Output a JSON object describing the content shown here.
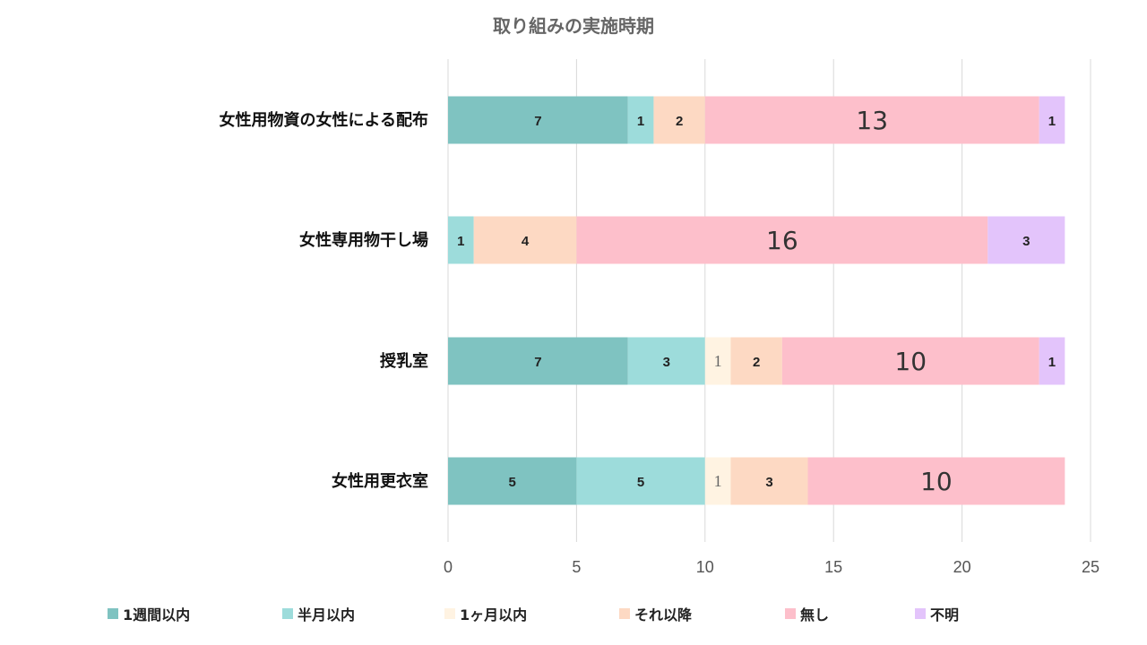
{
  "chart_data": {
    "type": "bar",
    "orientation": "horizontal",
    "stacked": true,
    "title": "取り組みの実施時期",
    "categories": [
      "女性用物資の女性による配布",
      "女性専用物干し場",
      "授乳室",
      "女性用更衣室"
    ],
    "series": [
      {
        "name": "1週間以内",
        "color": "#7fc3c1",
        "values": [
          7,
          0,
          7,
          5
        ]
      },
      {
        "name": "半月以内",
        "color": "#9ddcdb",
        "values": [
          1,
          1,
          3,
          5
        ]
      },
      {
        "name": "1ヶ月以内",
        "color": "#fff3e2",
        "values": [
          0,
          0,
          1,
          1
        ]
      },
      {
        "name": "それ以降",
        "color": "#fdd9c3",
        "values": [
          2,
          4,
          2,
          3
        ]
      },
      {
        "name": "無し",
        "color": "#fdbfcb",
        "values": [
          13,
          16,
          10,
          10
        ]
      },
      {
        "name": "不明",
        "color": "#e3c4fb",
        "values": [
          1,
          3,
          1,
          0
        ]
      }
    ],
    "xlim": [
      0,
      25
    ],
    "xticks": [
      "0",
      "5",
      "10",
      "15",
      "20",
      "25"
    ],
    "grid": true,
    "legend_position": "bottom"
  }
}
